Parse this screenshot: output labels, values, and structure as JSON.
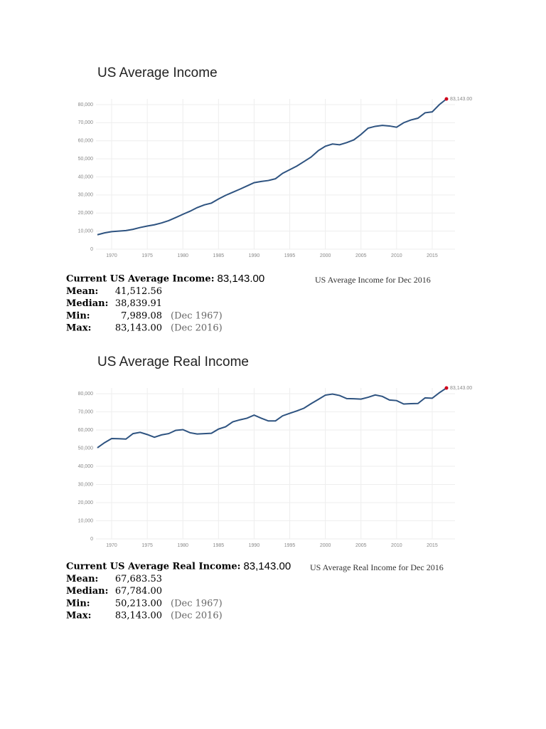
{
  "chart_data": [
    {
      "type": "line",
      "title": "US Average Income",
      "x": [
        1968,
        1969,
        1970,
        1971,
        1972,
        1973,
        1974,
        1975,
        1976,
        1977,
        1978,
        1979,
        1980,
        1981,
        1982,
        1983,
        1984,
        1985,
        1986,
        1987,
        1988,
        1989,
        1990,
        1991,
        1992,
        1993,
        1994,
        1995,
        1996,
        1997,
        1998,
        1999,
        2000,
        2001,
        2002,
        2003,
        2004,
        2005,
        2006,
        2007,
        2008,
        2009,
        2010,
        2011,
        2012,
        2013,
        2014,
        2015,
        2016,
        2017
      ],
      "series": [
        {
          "name": "US Average Income",
          "color": "#2e5380",
          "values": [
            7989.08,
            9000,
            9700,
            10000,
            10300,
            11000,
            12000,
            12800,
            13500,
            14500,
            15800,
            17500,
            19300,
            21000,
            23000,
            24500,
            25500,
            27800,
            29800,
            31500,
            33200,
            35000,
            36800,
            37500,
            38000,
            39000,
            42000,
            44000,
            46000,
            48500,
            51000,
            54500,
            57000,
            58200,
            57800,
            59000,
            60500,
            63500,
            67000,
            68000,
            68500,
            68200,
            67500,
            70000,
            71500,
            72500,
            75500,
            76000,
            80000,
            83143
          ],
          "value_labels": [
            null,
            null,
            null,
            null,
            null,
            null,
            null,
            null,
            null,
            null,
            null,
            null,
            null,
            null,
            null,
            null,
            null,
            null,
            null,
            null,
            null,
            null,
            null,
            null,
            null,
            null,
            null,
            null,
            null,
            null,
            null,
            null,
            null,
            null,
            null,
            null,
            null,
            null,
            null,
            null,
            null,
            null,
            null,
            null,
            null,
            null,
            null,
            null,
            null,
            "83,143.00"
          ]
        }
      ],
      "xlim": [
        1967.8,
        2018.2
      ],
      "xticks": [
        1970,
        1975,
        1980,
        1985,
        1990,
        1995,
        2000,
        2005,
        2010,
        2015
      ],
      "ylim": [
        0,
        80000
      ],
      "yticks": [
        0,
        {
          "value": 10000,
          "label": "10,000"
        },
        {
          "value": 20000,
          "label": "20,000"
        },
        {
          "value": 30000,
          "label": "30,000"
        },
        {
          "value": 40000,
          "label": "40,000"
        },
        {
          "value": 50000,
          "label": "50,000"
        },
        {
          "value": 60000,
          "label": "60,000"
        },
        {
          "value": 70000,
          "label": "70,000"
        },
        {
          "value": 80000,
          "label": "80,000"
        }
      ],
      "grid": true,
      "end_marker_color": "#d0021b"
    },
    {
      "type": "line",
      "title": "US Average Real Income",
      "x": [
        1968,
        1969,
        1970,
        1971,
        1972,
        1973,
        1974,
        1975,
        1976,
        1977,
        1978,
        1979,
        1980,
        1981,
        1982,
        1983,
        1984,
        1985,
        1986,
        1987,
        1988,
        1989,
        1990,
        1991,
        1992,
        1993,
        1994,
        1995,
        1996,
        1997,
        1998,
        1999,
        2000,
        2001,
        2002,
        2003,
        2004,
        2005,
        2006,
        2007,
        2008,
        2009,
        2010,
        2011,
        2012,
        2013,
        2014,
        2015,
        2016,
        2017
      ],
      "series": [
        {
          "name": "US Average Real Income",
          "color": "#2e5380",
          "values": [
            50213,
            53000,
            55300,
            55200,
            55000,
            58000,
            58700,
            57500,
            56000,
            57300,
            58000,
            59800,
            60200,
            58500,
            57800,
            58000,
            58200,
            60500,
            61800,
            64500,
            65600,
            66500,
            68200,
            66500,
            65000,
            65000,
            67800,
            69200,
            70500,
            72000,
            74500,
            76800,
            79200,
            79800,
            79000,
            77300,
            77200,
            77000,
            78000,
            79300,
            78500,
            76500,
            76200,
            74300,
            74500,
            74600,
            77700,
            77500,
            80500,
            83143
          ],
          "value_labels": [
            null,
            null,
            null,
            null,
            null,
            null,
            null,
            null,
            null,
            null,
            null,
            null,
            null,
            null,
            null,
            null,
            null,
            null,
            null,
            null,
            null,
            null,
            null,
            null,
            null,
            null,
            null,
            null,
            null,
            null,
            null,
            null,
            null,
            null,
            null,
            null,
            null,
            null,
            null,
            null,
            null,
            null,
            null,
            null,
            null,
            null,
            null,
            null,
            null,
            "83,143.00"
          ]
        }
      ],
      "xlim": [
        1967.8,
        2018.2
      ],
      "xticks": [
        1970,
        1975,
        1980,
        1985,
        1990,
        1995,
        2000,
        2005,
        2010,
        2015
      ],
      "ylim": [
        0,
        80000
      ],
      "yticks": [
        0,
        {
          "value": 10000,
          "label": "10,000"
        },
        {
          "value": 20000,
          "label": "20,000"
        },
        {
          "value": 30000,
          "label": "30,000"
        },
        {
          "value": 40000,
          "label": "40,000"
        },
        {
          "value": 50000,
          "label": "50,000"
        },
        {
          "value": 60000,
          "label": "60,000"
        },
        {
          "value": 70000,
          "label": "70,000"
        },
        {
          "value": 80000,
          "label": "80,000"
        }
      ],
      "grid": true,
      "end_marker_color": "#d0021b"
    }
  ],
  "stats": [
    {
      "current_label": "Current US Average Income:",
      "current_value": "83,143.00",
      "note": "US Average Income for Dec 2016",
      "rows": [
        [
          "Mean:",
          "41,512.56"
        ],
        [
          "Median:",
          "38,839.91"
        ],
        [
          "Min:",
          "7,989.08",
          "(Dec 1967)"
        ],
        [
          "Max:",
          "83,143.00",
          "(Dec 2016)"
        ]
      ]
    },
    {
      "current_label": "Current US Average Real Income:",
      "current_value": "83,143.00",
      "note": "US Average Real Income for Dec 2016",
      "rows": [
        [
          "Mean:",
          "67,683.53"
        ],
        [
          "Median:",
          "67,784.00"
        ],
        [
          "Min:",
          "50,213.00",
          "(Dec 1967)"
        ],
        [
          "Max:",
          "83,143.00",
          "(Dec 2016)"
        ]
      ]
    }
  ]
}
